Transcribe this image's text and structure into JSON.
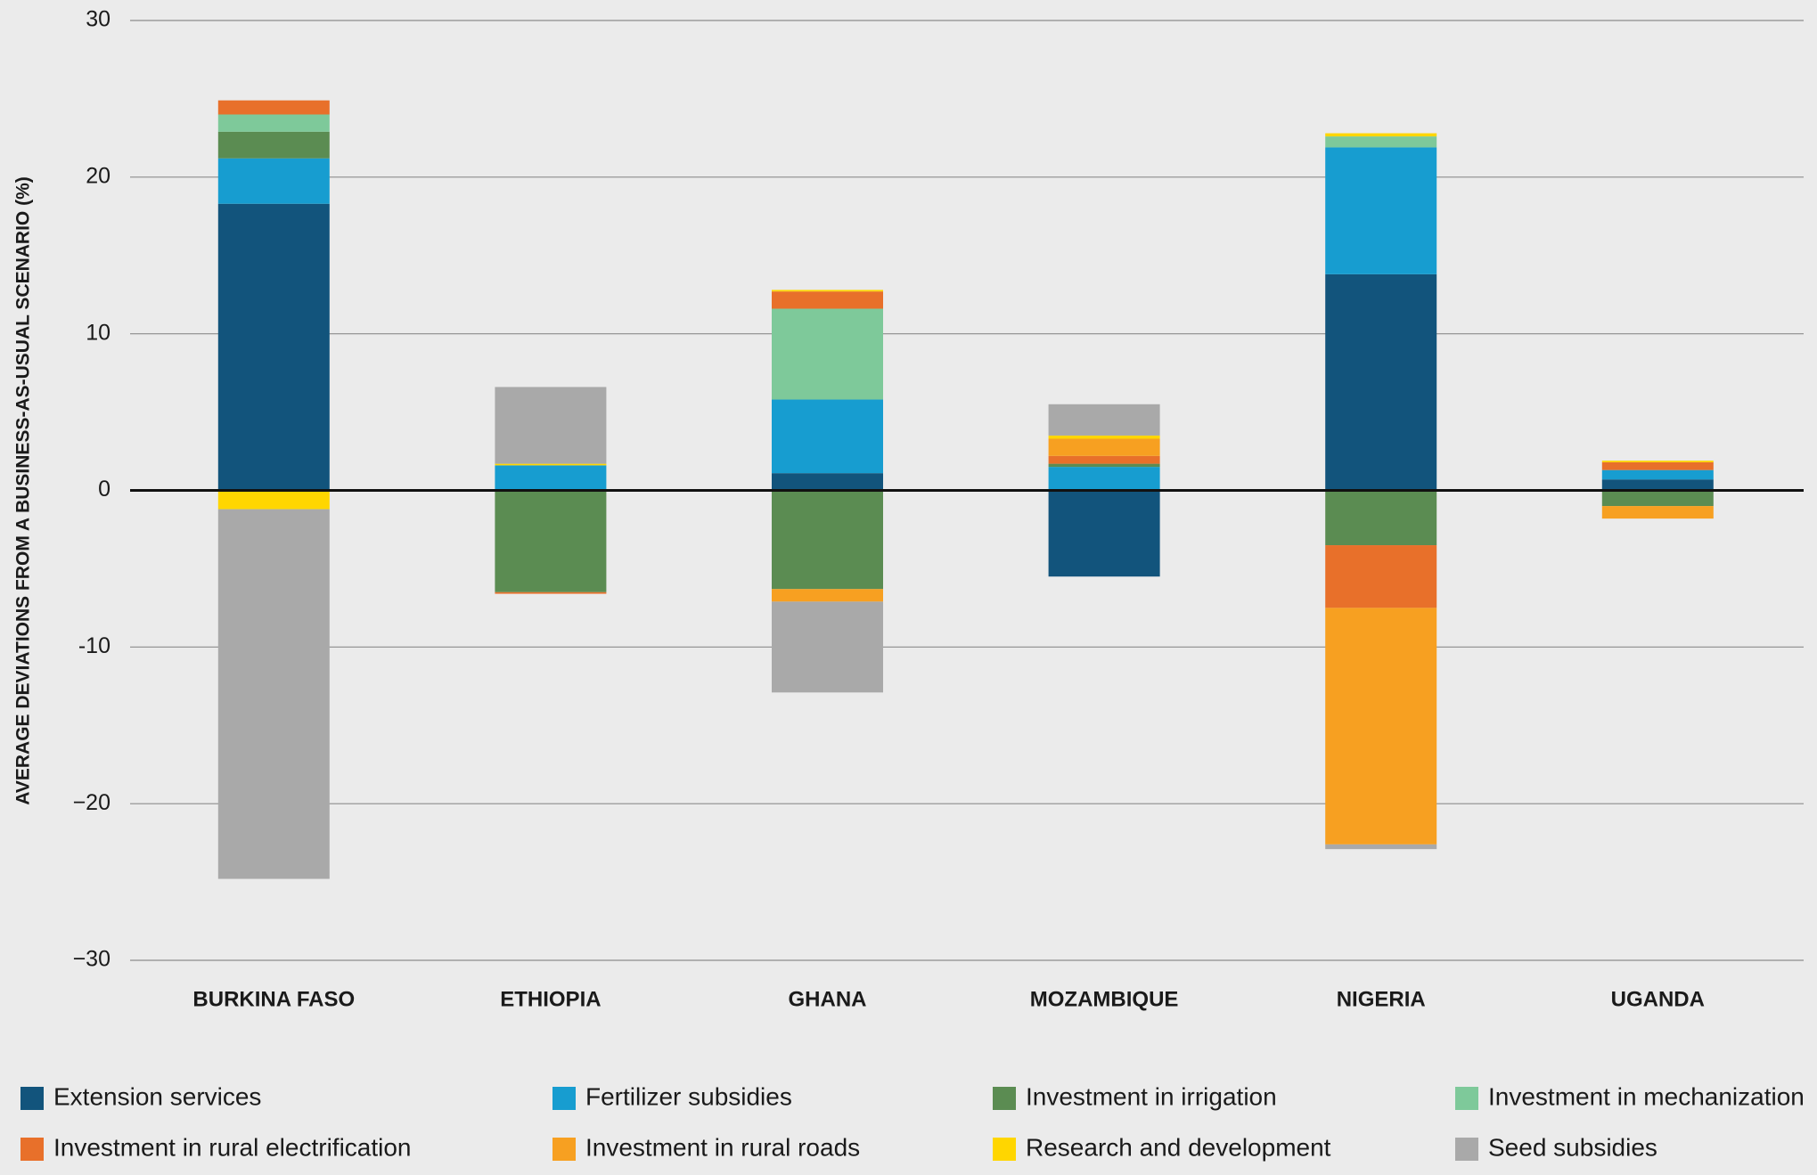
{
  "chart_data": {
    "type": "stacked-bar",
    "y_label": "AVERAGE DEVIATIONS FROM A BUSINESS-AS-USUAL SCENARIO (%)",
    "categories": [
      "BURKINA FASO",
      "ETHIOPIA",
      "GHANA",
      "MOZAMBIQUE",
      "NIGERIA",
      "UGANDA"
    ],
    "series": [
      {
        "name": "Extension services",
        "color": "#12547c",
        "values": [
          18.3,
          0,
          1.1,
          -5.5,
          13.8,
          0.7
        ]
      },
      {
        "name": "Fertilizer subsidies",
        "color": "#179dd0",
        "values": [
          2.9,
          1.6,
          4.7,
          1.5,
          8.1,
          0.6
        ]
      },
      {
        "name": "Investment in irrigation",
        "color": "#5b8c52",
        "values": [
          1.7,
          -6.5,
          -6.3,
          0.2,
          -3.5,
          -1.0
        ]
      },
      {
        "name": "Investment in mechanization",
        "color": "#7ec99a",
        "values": [
          1.1,
          0,
          5.8,
          0,
          0.7,
          0
        ]
      },
      {
        "name": "Investment in rural electrification",
        "color": "#e8702a",
        "values": [
          0.9,
          -0.1,
          1.1,
          0.5,
          -4.0,
          0.5
        ]
      },
      {
        "name": "Investment in rural roads",
        "color": "#f7a021",
        "values": [
          0,
          0,
          -0.8,
          1.1,
          -15.1,
          -0.8
        ]
      },
      {
        "name": "Research and development",
        "color": "#ffd600",
        "values": [
          -1.2,
          0.1,
          0.1,
          0.2,
          0.2,
          0.1
        ]
      },
      {
        "name": "Seed subsidies",
        "color": "#a9a9a9",
        "values": [
          -23.6,
          4.9,
          -5.8,
          2.0,
          -0.3,
          0
        ]
      }
    ],
    "ylim": [
      -30,
      30
    ],
    "yticks": [
      {
        "value": -30,
        "label": "−30"
      },
      {
        "value": -20,
        "label": "−20"
      },
      {
        "value": -10,
        "label": "-10"
      },
      0,
      10,
      20,
      30
    ],
    "grid": true
  }
}
